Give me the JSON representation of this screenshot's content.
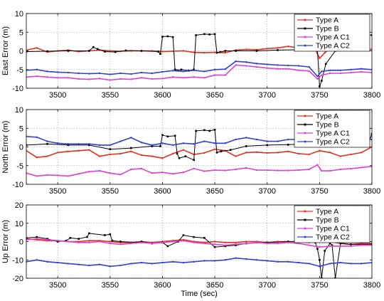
{
  "chart_data": [
    {
      "type": "line",
      "ylabel": "East Error (m)",
      "xlabel": "",
      "xlim": [
        3470,
        3800
      ],
      "ylim": [
        -10,
        10
      ],
      "xticks": [
        3500,
        3550,
        3600,
        3650,
        3700,
        3750,
        3800
      ],
      "yticks": [
        -10,
        -5,
        0,
        5,
        10
      ],
      "grid": true,
      "legend": "top-right",
      "series": [
        {
          "name": "Type A",
          "color": "#e03020",
          "x": [
            3470,
            3480,
            3490,
            3500,
            3510,
            3520,
            3530,
            3540,
            3550,
            3560,
            3570,
            3580,
            3590,
            3600,
            3610,
            3620,
            3630,
            3640,
            3650,
            3660,
            3670,
            3680,
            3690,
            3700,
            3710,
            3720,
            3730,
            3740,
            3745,
            3750,
            3755,
            3760,
            3770,
            3780,
            3790,
            3800
          ],
          "y": [
            0.2,
            0.8,
            -0.3,
            0,
            0.2,
            -0.2,
            0,
            0.2,
            0,
            -0.1,
            0,
            0,
            0,
            -0.2,
            -0.1,
            0,
            -0.4,
            -0.5,
            -0.4,
            -0.5,
            0.2,
            0.4,
            0.3,
            0.6,
            0.8,
            1.2,
            0.8,
            1.1,
            0.9,
            -2,
            -0.5,
            0.6,
            0.6,
            0.7,
            0.5,
            0.4
          ]
        },
        {
          "name": "Type B",
          "color": "#000000",
          "x": [
            3470,
            3490,
            3510,
            3530,
            3534,
            3538,
            3545,
            3555,
            3565,
            3580,
            3596,
            3598,
            3600,
            3605,
            3610,
            3612,
            3614,
            3618,
            3625,
            3630,
            3632,
            3640,
            3645,
            3650,
            3652,
            3655,
            3660,
            3670,
            3690,
            3710,
            3730,
            3740,
            3748,
            3750,
            3752,
            3756,
            3765,
            3780,
            3795,
            3797,
            3800
          ],
          "y": [
            -0.2,
            -0.1,
            0,
            0,
            1,
            0.5,
            -0.2,
            -0.3,
            0.1,
            0,
            -0.2,
            -0.8,
            3.8,
            3.9,
            3.7,
            -5,
            -5.2,
            -5,
            -5.3,
            -5,
            4.2,
            4.5,
            4.4,
            4.5,
            -0.5,
            -0.3,
            0,
            0,
            0,
            0.2,
            0.3,
            0.3,
            0.2,
            -9.5,
            -8,
            -3.5,
            0,
            0.4,
            0.5,
            4.3,
            4.2
          ]
        },
        {
          "name": "Type A C1",
          "color": "#e040d0",
          "x": [
            3470,
            3480,
            3490,
            3500,
            3510,
            3520,
            3530,
            3540,
            3550,
            3560,
            3570,
            3580,
            3590,
            3600,
            3610,
            3620,
            3630,
            3640,
            3650,
            3660,
            3670,
            3680,
            3690,
            3700,
            3710,
            3720,
            3730,
            3740,
            3748,
            3752,
            3760,
            3770,
            3780,
            3790,
            3800
          ],
          "y": [
            -7,
            -6.8,
            -7,
            -7.2,
            -7.2,
            -7.5,
            -7.6,
            -7.4,
            -7.8,
            -7.5,
            -7.6,
            -7.2,
            -7.5,
            -7.4,
            -7,
            -7.2,
            -7,
            -7.2,
            -6.5,
            -6.5,
            -3.8,
            -4,
            -4.3,
            -4.6,
            -4.8,
            -4.8,
            -5.2,
            -5.4,
            -7.5,
            -6.5,
            -6,
            -6,
            -5.8,
            -5.6,
            -5.8
          ]
        },
        {
          "name": "Type A C2",
          "color": "#3040d0",
          "x": [
            3470,
            3480,
            3490,
            3500,
            3510,
            3520,
            3530,
            3540,
            3550,
            3560,
            3570,
            3580,
            3590,
            3600,
            3610,
            3620,
            3630,
            3640,
            3650,
            3660,
            3670,
            3680,
            3690,
            3700,
            3710,
            3720,
            3730,
            3740,
            3748,
            3752,
            3760,
            3770,
            3780,
            3790,
            3800
          ],
          "y": [
            -5.2,
            -5,
            -5.5,
            -5.7,
            -5.8,
            -6,
            -6.1,
            -6,
            -6.3,
            -6,
            -6.2,
            -5.8,
            -6,
            -5.6,
            -5.3,
            -5.5,
            -5.2,
            -5.5,
            -5,
            -4.9,
            -2.8,
            -3,
            -3.4,
            -3.6,
            -3.8,
            -3.9,
            -4,
            -4.3,
            -6.8,
            -5.5,
            -5.2,
            -5.2,
            -5,
            -4.8,
            -5
          ]
        }
      ]
    },
    {
      "type": "line",
      "ylabel": "North Error (m)",
      "xlabel": "",
      "xlim": [
        3470,
        3800
      ],
      "ylim": [
        -10,
        10
      ],
      "xticks": [
        3500,
        3550,
        3600,
        3650,
        3700,
        3750,
        3800
      ],
      "yticks": [
        -10,
        -5,
        0,
        5,
        10
      ],
      "grid": true,
      "legend": "top-right",
      "series": [
        {
          "name": "Type A",
          "color": "#e03020",
          "x": [
            3470,
            3480,
            3490,
            3500,
            3510,
            3520,
            3530,
            3540,
            3550,
            3560,
            3570,
            3580,
            3590,
            3600,
            3610,
            3620,
            3630,
            3640,
            3650,
            3660,
            3670,
            3680,
            3690,
            3700,
            3710,
            3720,
            3730,
            3740,
            3750,
            3760,
            3770,
            3780,
            3790,
            3800
          ],
          "y": [
            -1,
            -2.8,
            -2.5,
            -1.5,
            -1.2,
            -1,
            -0.8,
            -2.5,
            -2,
            -1.8,
            -1.2,
            -2.2,
            -2.5,
            -3,
            -1.8,
            -0.8,
            -2,
            -1.6,
            -0.6,
            -1,
            -2.5,
            -1.5,
            -1.4,
            -1.6,
            -1.5,
            -1.2,
            -1.8,
            -2,
            -1,
            -1.5,
            -2.5,
            -2,
            -1.5,
            0
          ]
        },
        {
          "name": "Type B",
          "color": "#000000",
          "x": [
            3470,
            3490,
            3510,
            3530,
            3550,
            3570,
            3590,
            3598,
            3600,
            3605,
            3612,
            3614,
            3616,
            3622,
            3630,
            3632,
            3640,
            3645,
            3650,
            3652,
            3656,
            3665,
            3680,
            3700,
            3720,
            3740,
            3750,
            3760,
            3780,
            3796,
            3800
          ],
          "y": [
            0.5,
            0.8,
            0.5,
            0.5,
            -0.6,
            -0.3,
            0.2,
            0.2,
            3.2,
            2.8,
            3,
            -1.8,
            -3,
            -2.5,
            -3.5,
            4.3,
            4.5,
            4.3,
            4.6,
            -1.5,
            -1.2,
            -0.8,
            0.2,
            0.5,
            0.6,
            0.8,
            1.8,
            0.8,
            0.5,
            0.4,
            3.5
          ]
        },
        {
          "name": "Type A C1",
          "color": "#e040d0",
          "x": [
            3470,
            3480,
            3490,
            3500,
            3510,
            3520,
            3530,
            3540,
            3550,
            3560,
            3570,
            3580,
            3590,
            3600,
            3610,
            3620,
            3630,
            3640,
            3650,
            3660,
            3670,
            3680,
            3690,
            3700,
            3710,
            3720,
            3730,
            3740,
            3748,
            3752,
            3760,
            3770,
            3780,
            3790,
            3800
          ],
          "y": [
            -7,
            -7.8,
            -7.5,
            -7.6,
            -7.8,
            -7.2,
            -6.6,
            -6.4,
            -7,
            -7.4,
            -6,
            -5.8,
            -7,
            -6.8,
            -7.2,
            -6.8,
            -5.8,
            -6.5,
            -6.2,
            -6.3,
            -6,
            -5.6,
            -6.2,
            -6.2,
            -6.3,
            -6.3,
            -6.2,
            -6,
            -4.8,
            -6.4,
            -6.4,
            -6,
            -5.8,
            -5.5,
            -5.2
          ]
        },
        {
          "name": "Type A C2",
          "color": "#3040d0",
          "x": [
            3470,
            3480,
            3490,
            3500,
            3510,
            3520,
            3530,
            3540,
            3550,
            3560,
            3570,
            3580,
            3590,
            3600,
            3610,
            3620,
            3630,
            3640,
            3650,
            3660,
            3670,
            3680,
            3690,
            3700,
            3710,
            3720,
            3730,
            3740,
            3750,
            3760,
            3770,
            3780,
            3790,
            3800
          ],
          "y": [
            2.8,
            2.6,
            1.5,
            1,
            0.8,
            0.8,
            0.8,
            0.5,
            0.5,
            1.5,
            2.5,
            1.2,
            0.5,
            1,
            0.5,
            1,
            0.8,
            1.5,
            1,
            1,
            2,
            2.5,
            2,
            1.5,
            1.5,
            2,
            2,
            2,
            3,
            1.5,
            1.2,
            1.5,
            2,
            2
          ]
        }
      ]
    },
    {
      "type": "line",
      "ylabel": "Up Error (m)",
      "xlabel": "Time (sec)",
      "xlim": [
        3470,
        3800
      ],
      "ylim": [
        -20,
        20
      ],
      "xticks": [
        3500,
        3550,
        3600,
        3650,
        3700,
        3750,
        3800
      ],
      "yticks": [
        -20,
        -10,
        0,
        10,
        20
      ],
      "grid": true,
      "legend": "top-right",
      "series": [
        {
          "name": "Type A",
          "color": "#e03020",
          "x": [
            3470,
            3480,
            3490,
            3500,
            3510,
            3520,
            3530,
            3540,
            3550,
            3560,
            3570,
            3580,
            3590,
            3600,
            3610,
            3620,
            3630,
            3640,
            3650,
            3660,
            3670,
            3680,
            3690,
            3700,
            3710,
            3720,
            3730,
            3740,
            3750,
            3760,
            3770,
            3780,
            3790,
            3800
          ],
          "y": [
            1.5,
            1,
            0.5,
            0.5,
            0,
            0,
            0.5,
            0.5,
            0,
            -0.5,
            -0.5,
            0,
            -0.5,
            0,
            0.5,
            1,
            0,
            -0.5,
            0,
            -0.5,
            -0.5,
            0,
            0,
            -0.5,
            0,
            0,
            0,
            -0.5,
            0.5,
            0,
            -1,
            -1.5,
            -1,
            -1
          ]
        },
        {
          "name": "Type B",
          "color": "#000000",
          "x": [
            3470,
            3480,
            3490,
            3500,
            3508,
            3512,
            3520,
            3528,
            3530,
            3545,
            3550,
            3552,
            3560,
            3575,
            3580,
            3590,
            3600,
            3605,
            3615,
            3620,
            3630,
            3640,
            3650,
            3660,
            3670,
            3680,
            3700,
            3720,
            3740,
            3746,
            3748,
            3750,
            3752,
            3755,
            3760,
            3762,
            3765,
            3770,
            3780,
            3800
          ],
          "y": [
            2,
            2.5,
            1.5,
            0,
            0.5,
            2,
            1.5,
            2.5,
            4.5,
            3.5,
            4,
            0.5,
            0,
            -0.5,
            0,
            -1,
            -0.5,
            -2.5,
            0,
            3.5,
            2.5,
            2,
            -3,
            -2.5,
            -2,
            -1,
            -0.5,
            0,
            0,
            -0.5,
            -4,
            -10,
            -20,
            -5,
            -1,
            -2,
            -20,
            -1,
            -1.5,
            -1.5
          ]
        },
        {
          "name": "Type A C1",
          "color": "#e040d0",
          "x": [
            3470,
            3480,
            3490,
            3500,
            3510,
            3520,
            3530,
            3540,
            3550,
            3560,
            3570,
            3580,
            3590,
            3600,
            3610,
            3620,
            3630,
            3640,
            3650,
            3660,
            3670,
            3680,
            3690,
            3700,
            3710,
            3720,
            3730,
            3740,
            3750,
            3760,
            3770,
            3780,
            3790,
            3800
          ],
          "y": [
            1,
            1.5,
            1,
            0.5,
            0,
            -0.5,
            -0.5,
            0,
            -1,
            -1.5,
            -1,
            -0.5,
            -1,
            -0.5,
            0,
            0.5,
            -0.5,
            -1,
            -1.5,
            -2,
            -1.5,
            -1,
            -0.5,
            -1,
            -1,
            -0.5,
            -1,
            -2,
            -3,
            -2.5,
            -2.5,
            -2.5,
            -2,
            -2
          ]
        },
        {
          "name": "Type A C2",
          "color": "#3040d0",
          "x": [
            3470,
            3480,
            3490,
            3500,
            3510,
            3520,
            3530,
            3540,
            3550,
            3560,
            3570,
            3580,
            3590,
            3600,
            3610,
            3620,
            3630,
            3640,
            3650,
            3660,
            3670,
            3680,
            3690,
            3700,
            3710,
            3720,
            3730,
            3740,
            3750,
            3760,
            3770,
            3780,
            3790,
            3800
          ],
          "y": [
            -11,
            -10,
            -11,
            -11.5,
            -12,
            -12.5,
            -13,
            -12.5,
            -13.5,
            -13,
            -12,
            -11.5,
            -12,
            -11.5,
            -11,
            -11.5,
            -11,
            -10.5,
            -10.5,
            -10,
            -9,
            -9.5,
            -10,
            -10.5,
            -11,
            -11,
            -11.5,
            -12,
            -13.5,
            -12,
            -11.5,
            -12,
            -12,
            -11.5
          ]
        }
      ]
    }
  ]
}
